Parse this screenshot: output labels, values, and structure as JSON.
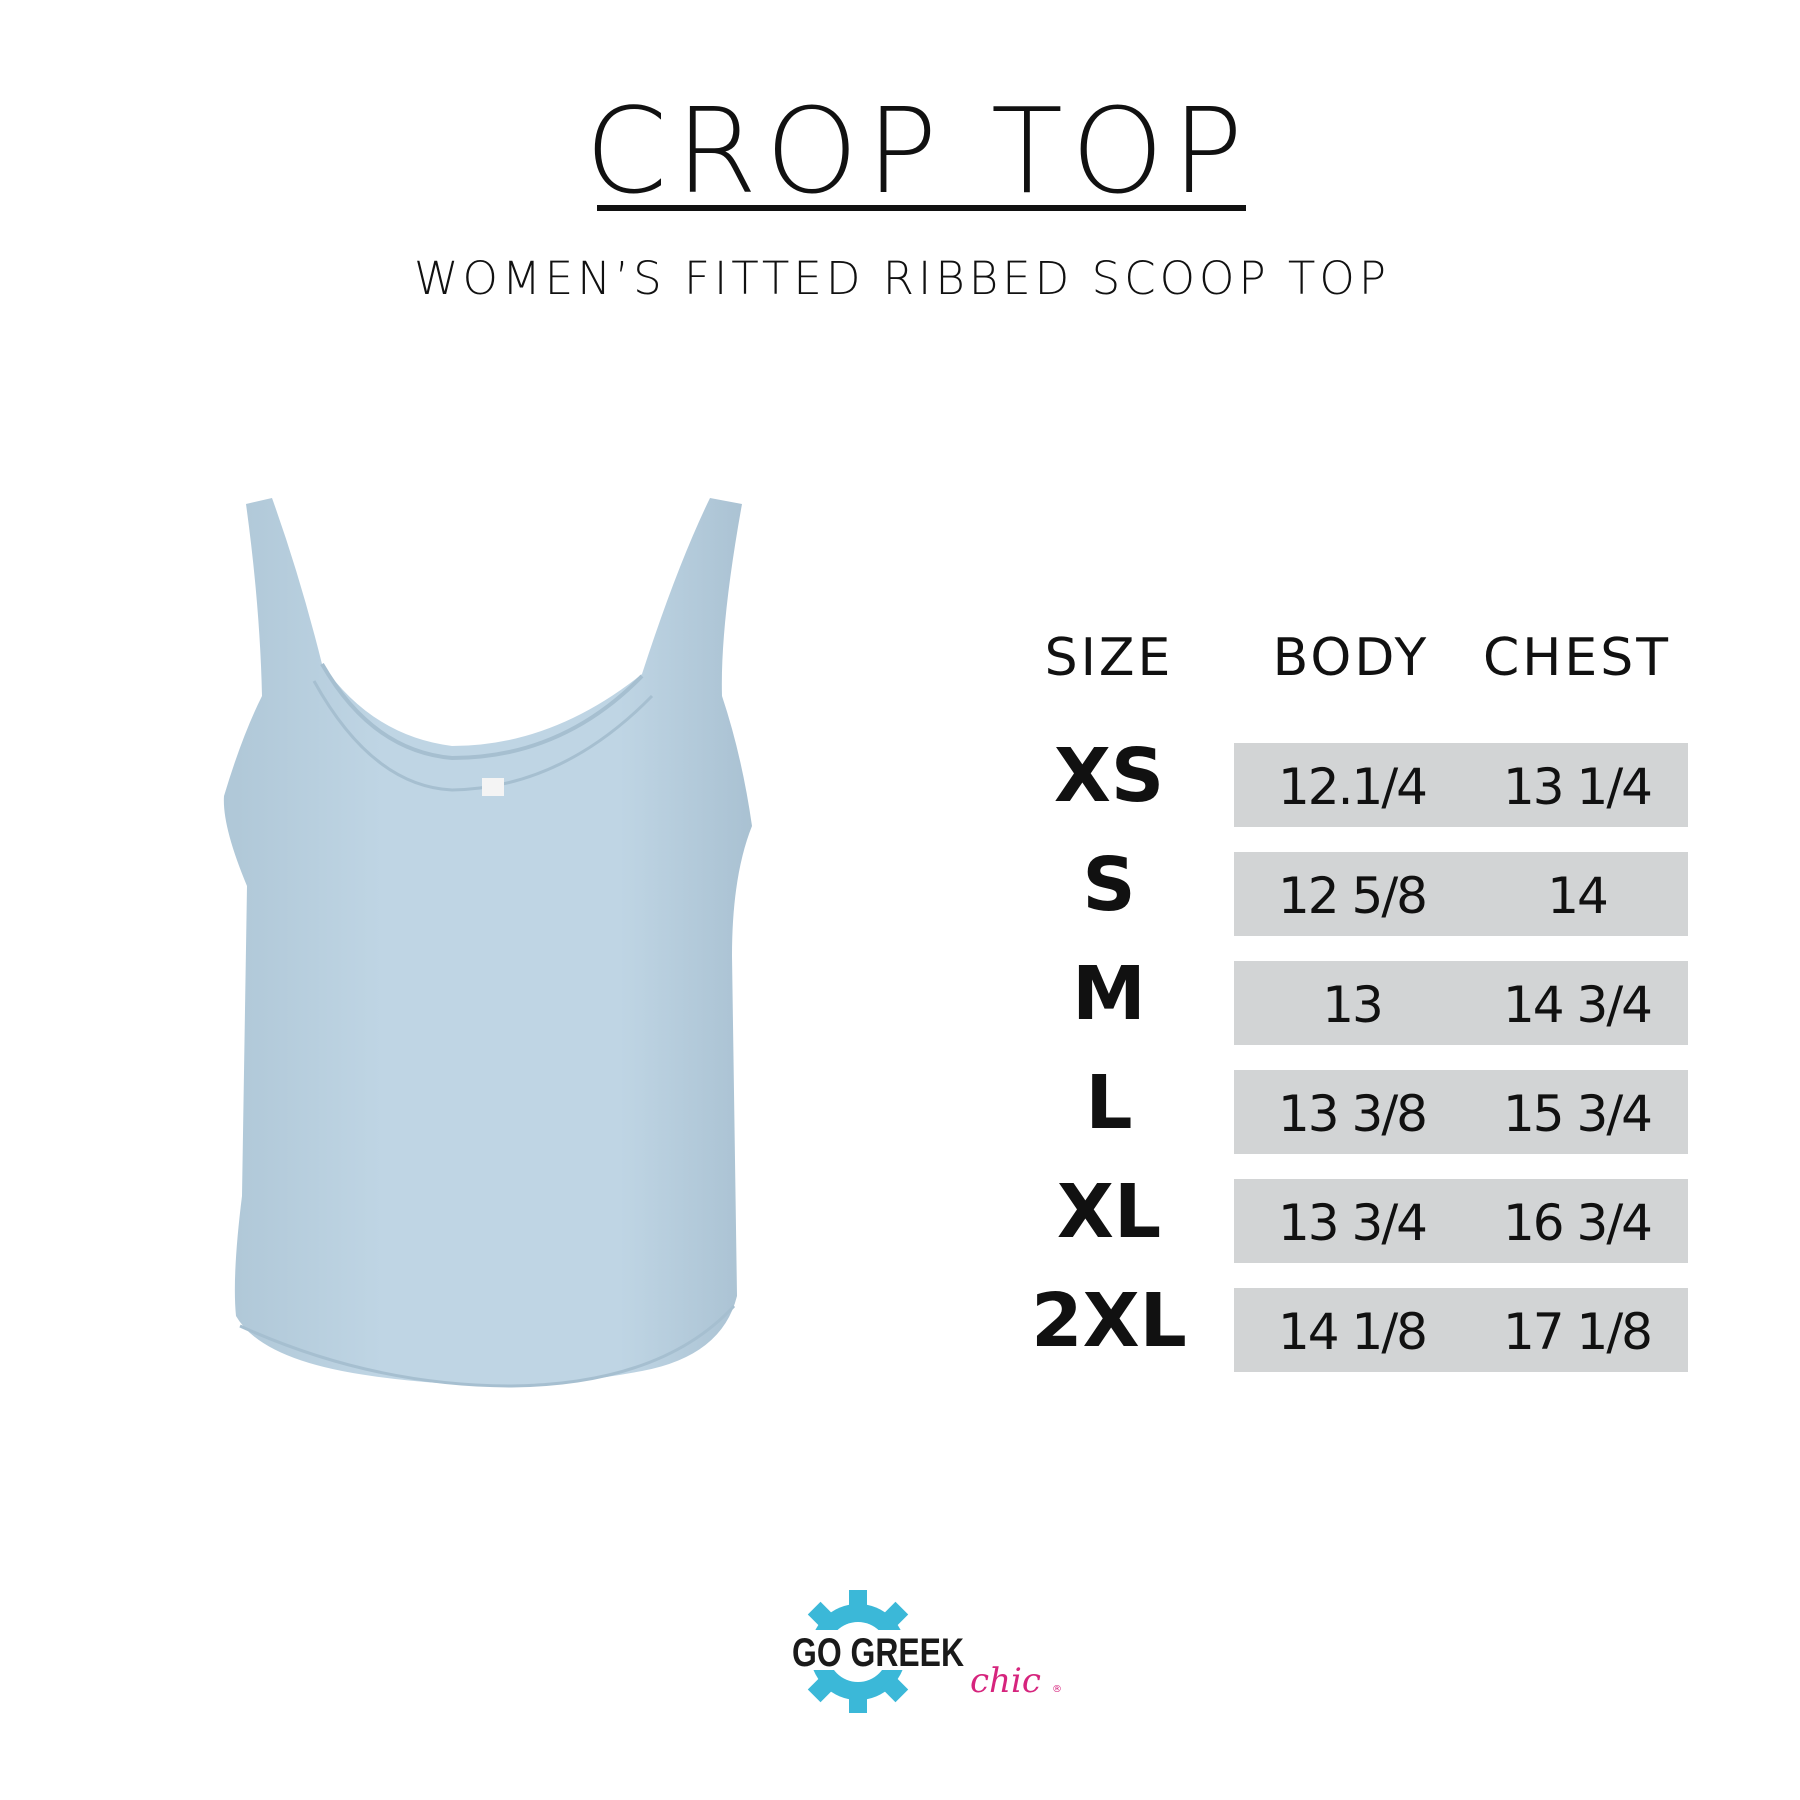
{
  "title": "CROP TOP",
  "subtitle": "WOMEN’S FITTED RIBBED SCOOP TOP",
  "product_color": "#bfd5e4",
  "table": {
    "headers": [
      "SIZE",
      "BODY",
      "CHEST"
    ],
    "rows": [
      {
        "size": "XS",
        "body": "12.1/4",
        "chest": "13 1/4"
      },
      {
        "size": "S",
        "body": "12 5/8",
        "chest": "14"
      },
      {
        "size": "M",
        "body": "13",
        "chest": "14 3/4"
      },
      {
        "size": "L",
        "body": "13 3/8",
        "chest": "15 3/4"
      },
      {
        "size": "XL",
        "body": "13 3/4",
        "chest": "16 3/4"
      },
      {
        "size": "2XL",
        "body": "14 1/8",
        "chest": "17 1/8"
      }
    ]
  },
  "logo": {
    "text": "GO GREEK",
    "script": "chic",
    "gear_color": "#3bb8d8",
    "script_color": "#d6247d"
  }
}
